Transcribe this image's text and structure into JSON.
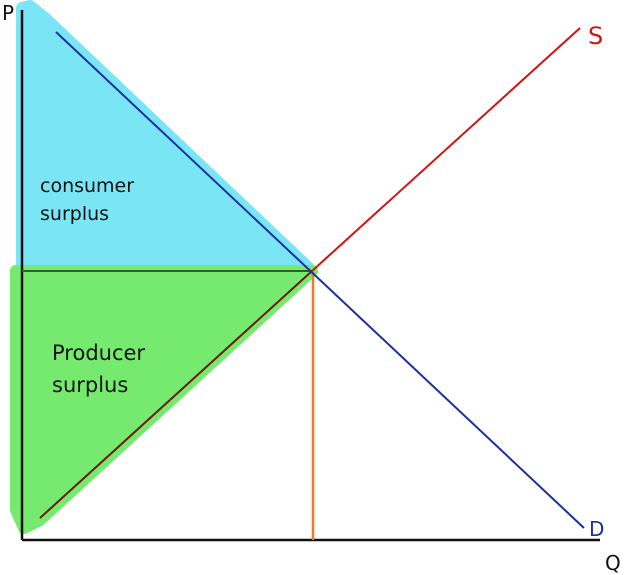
{
  "axes": {
    "y_label": "P",
    "x_label": "Q"
  },
  "curves": {
    "supply": {
      "label": "S",
      "color": "#d01414"
    },
    "demand": {
      "label": "D",
      "color": "#1b2fa6"
    }
  },
  "regions": {
    "consumer_surplus": {
      "line1": "consumer",
      "line2": "surplus",
      "color": "#7ae6f5"
    },
    "producer_surplus": {
      "line1": "Producer",
      "line2": "surplus",
      "color": "#76ea6e"
    }
  },
  "colors": {
    "axis": "#111111",
    "equilibrium_price_line": "#3d5a2a",
    "equilibrium_quantity_line": "#f27a25"
  }
}
